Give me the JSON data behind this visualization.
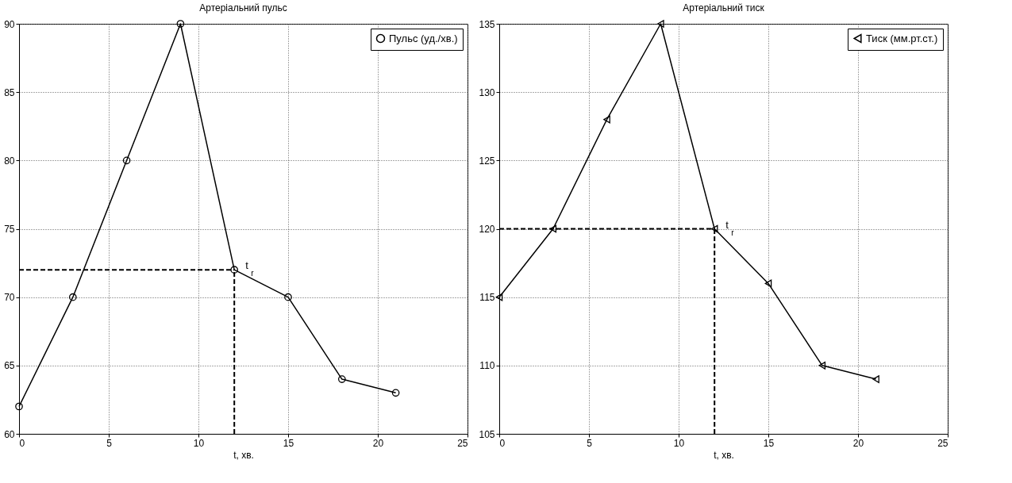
{
  "chart_data": [
    {
      "type": "line",
      "title": "Артеріальний пульс",
      "xlabel": "t, хв.",
      "x": [
        0,
        3,
        6,
        9,
        12,
        15,
        18,
        21
      ],
      "series": [
        {
          "name": "Пульс (уд./хв.)",
          "color": "#000000",
          "values": [
            62,
            70,
            80,
            90,
            72,
            70,
            64,
            63
          ]
        }
      ],
      "xlim": [
        0,
        25
      ],
      "xticks": [
        0,
        5,
        10,
        15,
        20,
        25
      ],
      "ylim": [
        60,
        90
      ],
      "yticks": [
        60,
        65,
        70,
        75,
        80,
        85,
        90
      ],
      "grid": true,
      "legend": "top right",
      "marker": "circle",
      "line_style": "solid",
      "ref_lines": [
        {
          "axis": "x",
          "value": 12,
          "line_style": "dashed"
        },
        {
          "axis": "y",
          "value": 72,
          "line_style": "dashed"
        }
      ],
      "annotations": [
        {
          "text": "t$_{r}$",
          "x": 12,
          "y": 72
        }
      ]
    },
    {
      "type": "line",
      "title": "Артеріальний тиск",
      "xlabel": "t, хв.",
      "x": [
        0,
        3,
        6,
        9,
        12,
        15,
        18,
        21
      ],
      "series": [
        {
          "name": "Тиск (мм.рт.ст.)",
          "color": "#000000",
          "values": [
            115,
            120,
            128,
            135,
            120,
            116,
            110,
            109
          ]
        }
      ],
      "xlim": [
        0,
        25
      ],
      "xticks": [
        0,
        5,
        10,
        15,
        20,
        25
      ],
      "ylim": [
        105,
        135
      ],
      "yticks": [
        105,
        110,
        115,
        120,
        125,
        130,
        135
      ],
      "grid": true,
      "legend": "top right",
      "marker": "triangle",
      "line_style": "solid",
      "ref_lines": [
        {
          "axis": "x",
          "value": 12,
          "line_style": "dashed"
        },
        {
          "axis": "y",
          "value": 120,
          "line_style": "dashed"
        }
      ],
      "annotations": [
        {
          "text": "t$_{r}$",
          "x": 12,
          "y": 120
        }
      ]
    }
  ]
}
